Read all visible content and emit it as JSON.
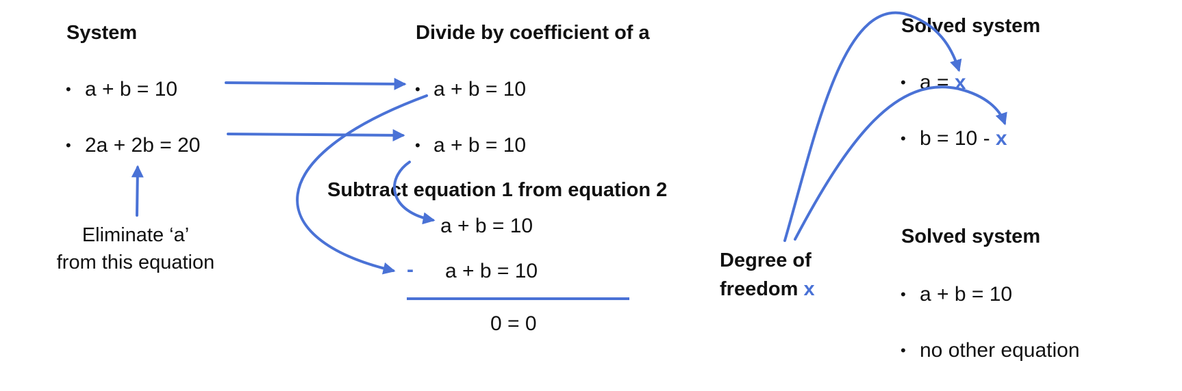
{
  "colors": {
    "accent": "#4a72d6",
    "text": "#111111"
  },
  "bullet": "•",
  "system": {
    "title": "System",
    "eq1": "a + b = 10",
    "eq2": "2a + 2b = 20",
    "note_line1": "Eliminate ‘a’",
    "note_line2": "from this equation"
  },
  "divide": {
    "title": "Divide by coefficient of a",
    "eq1": "a + b = 10",
    "eq2": "a + b = 10"
  },
  "subtract": {
    "title": "Subtract equation 1 from equation 2",
    "line1": "a + b = 10",
    "minus": "-",
    "line2": "a + b = 10",
    "result": "0 = 0"
  },
  "freedom": {
    "line1": "Degree of",
    "line2": "freedom",
    "var": "x"
  },
  "solved1": {
    "title": "Solved system",
    "eq1": "a = ",
    "eq1_var": "x",
    "eq2": "b = 10 - ",
    "eq2_var": "x"
  },
  "solved2": {
    "title": "Solved system",
    "eq1": "a + b = 10",
    "eq2": "no other equation"
  }
}
